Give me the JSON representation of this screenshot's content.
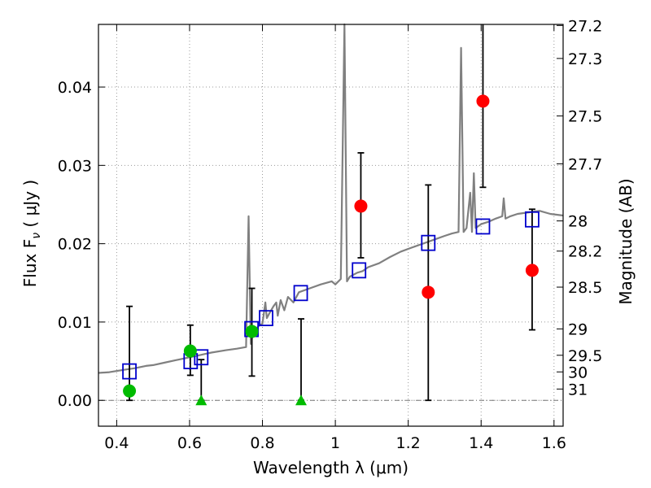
{
  "chart_data": {
    "type": "scatter",
    "xlabel": "Wavelength  λ (μm)",
    "ylabel_left": "Flux  F_ν  ( μJy )",
    "ylabel_right": "Magnitude (AB)",
    "xlim": [
      0.35,
      1.625
    ],
    "ylim": [
      -0.0033,
      0.048
    ],
    "grid": true,
    "x_ticks": [
      0.4,
      0.6,
      0.8,
      1.0,
      1.2,
      1.4,
      1.6
    ],
    "x_tick_labels": [
      "0.4",
      "0.6",
      "0.8",
      "1",
      "1.2",
      "1.4",
      "1.6"
    ],
    "y_ticks": [
      0.0,
      0.01,
      0.02,
      0.03,
      0.04
    ],
    "y_tick_labels": [
      "0.00",
      "0.01",
      "0.02",
      "0.03",
      "0.04"
    ],
    "right_ticks": [
      {
        "mag": 27.2,
        "label": "27.2"
      },
      {
        "mag": 27.3,
        "label": "27.3"
      },
      {
        "mag": 27.5,
        "label": "27.5"
      },
      {
        "mag": 27.7,
        "label": "27.7"
      },
      {
        "mag": 28.0,
        "label": "28"
      },
      {
        "mag": 28.2,
        "label": "28.2"
      },
      {
        "mag": 28.5,
        "label": "28.5"
      },
      {
        "mag": 29.0,
        "label": "29"
      },
      {
        "mag": 29.5,
        "label": "29.5"
      },
      {
        "mag": 30.0,
        "label": "30"
      },
      {
        "mag": 31.0,
        "label": "31"
      }
    ],
    "series": [
      {
        "kind": "spectrum",
        "color": "#808080",
        "points": [
          [
            0.35,
            0.0035
          ],
          [
            0.38,
            0.0036
          ],
          [
            0.42,
            0.0039
          ],
          [
            0.45,
            0.0041
          ],
          [
            0.48,
            0.0044
          ],
          [
            0.5,
            0.0045
          ],
          [
            0.53,
            0.0048
          ],
          [
            0.56,
            0.0051
          ],
          [
            0.58,
            0.0053
          ],
          [
            0.6,
            0.0055
          ],
          [
            0.63,
            0.0058
          ],
          [
            0.66,
            0.0061
          ],
          [
            0.7,
            0.0064
          ],
          [
            0.73,
            0.0066
          ],
          [
            0.755,
            0.0068
          ],
          [
            0.762,
            0.0235
          ],
          [
            0.768,
            0.0072
          ],
          [
            0.775,
            0.0088
          ],
          [
            0.79,
            0.0095
          ],
          [
            0.8,
            0.0098
          ],
          [
            0.808,
            0.0125
          ],
          [
            0.812,
            0.0105
          ],
          [
            0.82,
            0.0112
          ],
          [
            0.83,
            0.012
          ],
          [
            0.838,
            0.0125
          ],
          [
            0.842,
            0.0108
          ],
          [
            0.85,
            0.0128
          ],
          [
            0.86,
            0.0115
          ],
          [
            0.87,
            0.0132
          ],
          [
            0.885,
            0.0125
          ],
          [
            0.9,
            0.0138
          ],
          [
            0.93,
            0.0143
          ],
          [
            0.96,
            0.0148
          ],
          [
            0.99,
            0.0152
          ],
          [
            1.0,
            0.0148
          ],
          [
            1.015,
            0.0155
          ],
          [
            1.025,
            0.048
          ],
          [
            1.032,
            0.0152
          ],
          [
            1.04,
            0.0158
          ],
          [
            1.06,
            0.0163
          ],
          [
            1.075,
            0.0165
          ],
          [
            1.09,
            0.017
          ],
          [
            1.12,
            0.0175
          ],
          [
            1.15,
            0.0183
          ],
          [
            1.18,
            0.019
          ],
          [
            1.21,
            0.0195
          ],
          [
            1.24,
            0.02
          ],
          [
            1.27,
            0.0205
          ],
          [
            1.3,
            0.021
          ],
          [
            1.32,
            0.0213
          ],
          [
            1.338,
            0.0215
          ],
          [
            1.345,
            0.045
          ],
          [
            1.352,
            0.0215
          ],
          [
            1.36,
            0.022
          ],
          [
            1.37,
            0.0265
          ],
          [
            1.375,
            0.0215
          ],
          [
            1.38,
            0.029
          ],
          [
            1.385,
            0.022
          ],
          [
            1.4,
            0.0225
          ],
          [
            1.42,
            0.0228
          ],
          [
            1.44,
            0.0232
          ],
          [
            1.458,
            0.0235
          ],
          [
            1.462,
            0.0258
          ],
          [
            1.467,
            0.0232
          ],
          [
            1.48,
            0.0235
          ],
          [
            1.5,
            0.0238
          ],
          [
            1.53,
            0.024
          ],
          [
            1.56,
            0.0242
          ],
          [
            1.59,
            0.0238
          ],
          [
            1.625,
            0.0236
          ]
        ]
      },
      {
        "kind": "model_squares",
        "color": "#0000cc",
        "points": [
          [
            0.435,
            0.0037
          ],
          [
            0.603,
            0.005
          ],
          [
            0.632,
            0.0055
          ],
          [
            0.77,
            0.0091
          ],
          [
            0.81,
            0.0105
          ],
          [
            0.905,
            0.0137
          ],
          [
            1.065,
            0.0166
          ],
          [
            1.255,
            0.0201
          ],
          [
            1.405,
            0.0222
          ],
          [
            1.54,
            0.0231
          ]
        ]
      },
      {
        "kind": "green_detections",
        "color": "#00bb00",
        "points": [
          [
            0.435,
            0.0012,
            0.0,
            0.012
          ],
          [
            0.602,
            0.0063,
            0.0032,
            0.0096
          ],
          [
            0.771,
            0.0088,
            0.0031,
            0.0143
          ]
        ]
      },
      {
        "kind": "green_limits",
        "color": "#00bb00",
        "points": [
          [
            0.632,
            0.0,
            0.0,
            0.0052
          ],
          [
            0.906,
            0.0,
            0.0,
            0.0104
          ]
        ]
      },
      {
        "kind": "red_detections",
        "color": "#ff0000",
        "points": [
          [
            1.07,
            0.0248,
            0.0182,
            0.0316
          ],
          [
            1.255,
            0.0138,
            0.0,
            0.0275
          ],
          [
            1.405,
            0.0382,
            0.0272,
            0.048
          ],
          [
            1.54,
            0.0166,
            0.009,
            0.0244
          ]
        ]
      }
    ]
  }
}
